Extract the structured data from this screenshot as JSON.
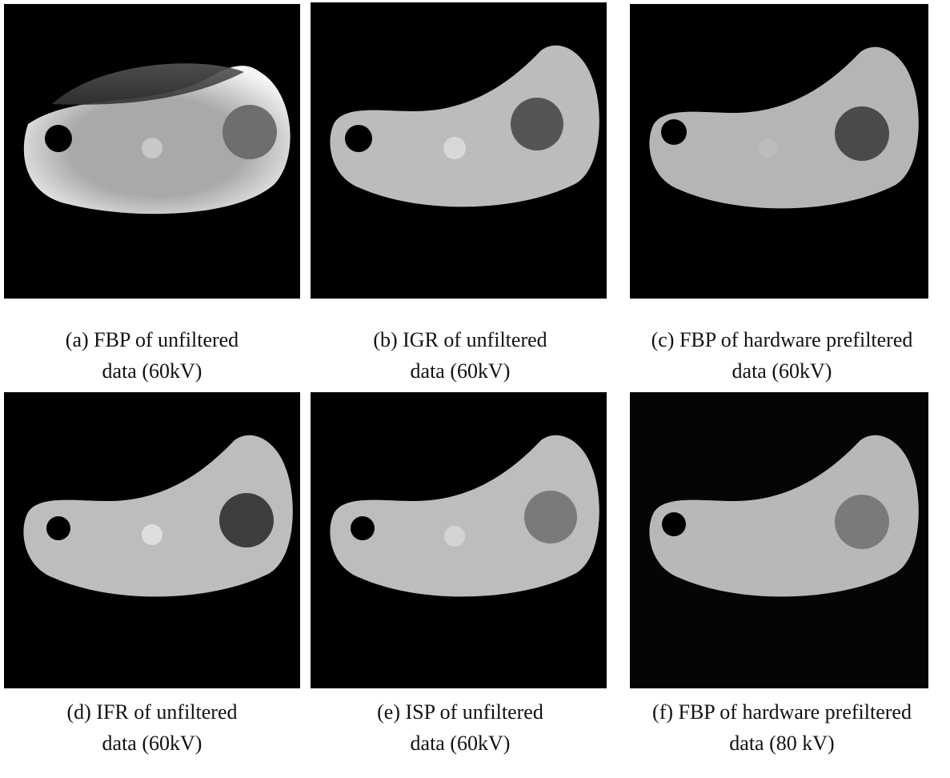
{
  "figure": {
    "panels": [
      {
        "caption": [
          "(a) FBP of unfiltered",
          "data (60kV)"
        ]
      },
      {
        "caption": [
          "(b) IGR of unfiltered",
          "data (60kV)"
        ]
      },
      {
        "caption": [
          "(c) FBP of hardware prefiltered",
          "data (60kV)"
        ]
      },
      {
        "caption": [
          "(d) IFR of unfiltered",
          "data (60kV)"
        ]
      },
      {
        "caption": [
          "(e) ISP of unfiltered",
          "data (60kV)"
        ]
      },
      {
        "caption": [
          "(f) FBP of hardware prefiltered",
          "data (80 kV)"
        ]
      }
    ]
  }
}
